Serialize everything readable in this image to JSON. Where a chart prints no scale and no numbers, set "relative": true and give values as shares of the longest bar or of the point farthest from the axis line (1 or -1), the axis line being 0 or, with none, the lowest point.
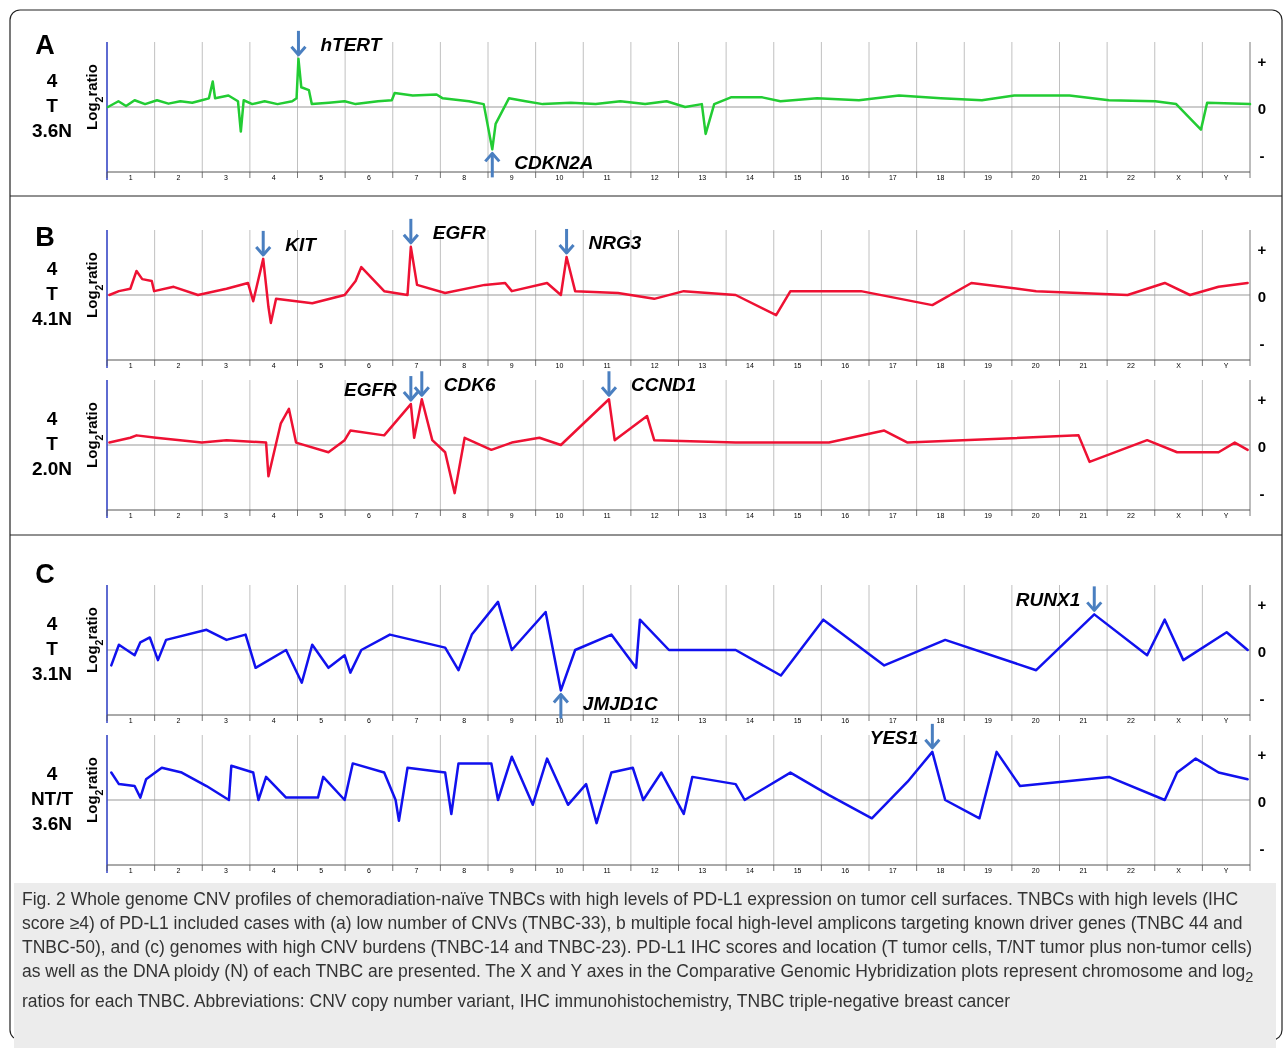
{
  "chart_data": [
    {
      "type": "line",
      "title": "A",
      "ylabel": "Log$_{2}$ratio",
      "color": "#22cc33",
      "grid": "x",
      "relative": true,
      "xlim": [
        0.5,
        24.5
      ],
      "xticks": [
        {
          "value": 0.5,
          "label": null
        },
        1,
        {
          "value": 1.5,
          "label": null
        },
        2,
        {
          "value": 2.5,
          "label": null
        },
        3,
        {
          "value": 3.5,
          "label": null
        },
        4,
        {
          "value": 4.5,
          "label": null
        },
        5,
        {
          "value": 5.5,
          "label": null
        },
        6,
        {
          "value": 6.5,
          "label": null
        },
        7,
        {
          "value": 7.5,
          "label": null
        },
        8,
        {
          "value": 8.5,
          "label": null
        },
        9,
        {
          "value": 9.5,
          "label": null
        },
        10,
        {
          "value": 10.5,
          "label": null
        },
        11,
        {
          "value": 11.5,
          "label": null
        },
        12,
        {
          "value": 12.5,
          "label": null
        },
        13,
        {
          "value": 13.5,
          "label": null
        },
        14,
        {
          "value": 14.5,
          "label": null
        },
        15,
        {
          "value": 15.5,
          "label": null
        },
        16,
        {
          "value": 16.5,
          "label": null
        },
        17,
        {
          "value": 17.5,
          "label": null
        },
        18,
        {
          "value": 18.5,
          "label": null
        },
        19,
        {
          "value": 19.5,
          "label": null
        },
        20,
        {
          "value": 20.5,
          "label": null
        },
        21,
        {
          "value": 21.5,
          "label": null
        },
        22,
        {
          "value": 22.5,
          "label": null
        },
        {
          "value": 23,
          "label": "X"
        },
        {
          "value": 23.5,
          "label": null
        },
        {
          "value": 24,
          "label": "Y"
        },
        {
          "value": 24.5,
          "label": null
        }
      ],
      "ref_lines": [
        {
          "axis": "y",
          "value": 0,
          "color": "#999999"
        }
      ],
      "x": [
        0.52,
        0.74,
        0.9,
        1.08,
        1.3,
        1.55,
        1.79,
        2.04,
        2.29,
        2.49,
        2.64,
        2.72,
        2.77,
        3.05,
        3.25,
        3.31,
        3.37,
        3.55,
        3.81,
        4.08,
        4.39,
        4.48,
        4.52,
        4.58,
        4.74,
        4.8,
        5.16,
        5.49,
        5.72,
        6.19,
        6.48,
        6.54,
        6.92,
        7.42,
        7.55,
        8.1,
        8.41,
        8.59,
        8.66,
        8.94,
        9.29,
        9.65,
        10.24,
        10.76,
        11.28,
        11.8,
        12.25,
        12.64,
        12.99,
        13.07,
        13.25,
        13.6,
        14.26,
        14.64,
        15.41,
        16.29,
        17.13,
        18.01,
        18.87,
        19.55,
        20.71,
        21.54,
        22.51,
        22.95,
        23.47,
        23.6,
        24.5
      ],
      "values": [
        0,
        0.12,
        0.02,
        0.14,
        0.06,
        0.14,
        0.07,
        0.12,
        0.09,
        0.14,
        0.18,
        0.53,
        0.18,
        0.24,
        0.12,
        -0.51,
        0.14,
        0.06,
        0.12,
        0.06,
        0.12,
        0.18,
        1,
        0.41,
        0.35,
        0.06,
        0.09,
        0.12,
        0.06,
        0.12,
        0.14,
        0.29,
        0.24,
        0.26,
        0.18,
        0.12,
        0.06,
        -0.88,
        -0.35,
        0.18,
        0.12,
        0.06,
        0.09,
        0.06,
        0.12,
        0.06,
        0.12,
        0,
        0.06,
        -0.56,
        0.06,
        0.2,
        0.2,
        0.12,
        0.18,
        0.14,
        0.24,
        0.18,
        0.14,
        0.24,
        0.24,
        0.14,
        0.12,
        0.06,
        -0.47,
        0.09,
        0.06
      ],
      "annotations": [
        "4\nT\n3.6N",
        "+",
        "0",
        "-",
        {
          "text": "hTERT",
          "x": 4.52,
          "y": 1
        },
        {
          "text": "CDKN2A",
          "x": 8.59,
          "y": -0.88
        }
      ]
    },
    {
      "type": "line",
      "title": "B",
      "ylabel": "Log$_{2}$ratio",
      "color": "#ee1133",
      "grid": "x",
      "relative": true,
      "xlim": [
        0.5,
        24.5
      ],
      "xticks": [
        {
          "value": 0.5,
          "label": null
        },
        1,
        {
          "value": 1.5,
          "label": null
        },
        2,
        {
          "value": 2.5,
          "label": null
        },
        3,
        {
          "value": 3.5,
          "label": null
        },
        4,
        {
          "value": 4.5,
          "label": null
        },
        5,
        {
          "value": 5.5,
          "label": null
        },
        6,
        {
          "value": 6.5,
          "label": null
        },
        7,
        {
          "value": 7.5,
          "label": null
        },
        8,
        {
          "value": 8.5,
          "label": null
        },
        9,
        {
          "value": 9.5,
          "label": null
        },
        10,
        {
          "value": 10.5,
          "label": null
        },
        11,
        {
          "value": 11.5,
          "label": null
        },
        12,
        {
          "value": 12.5,
          "label": null
        },
        13,
        {
          "value": 13.5,
          "label": null
        },
        14,
        {
          "value": 14.5,
          "label": null
        },
        15,
        {
          "value": 15.5,
          "label": null
        },
        16,
        {
          "value": 16.5,
          "label": null
        },
        17,
        {
          "value": 17.5,
          "label": null
        },
        18,
        {
          "value": 18.5,
          "label": null
        },
        19,
        {
          "value": 19.5,
          "label": null
        },
        20,
        {
          "value": 20.5,
          "label": null
        },
        21,
        {
          "value": 21.5,
          "label": null
        },
        22,
        {
          "value": 22.5,
          "label": null
        },
        {
          "value": 23,
          "label": "X"
        },
        {
          "value": 23.5,
          "label": null
        },
        {
          "value": 24,
          "label": "Y"
        },
        {
          "value": 24.5,
          "label": null
        }
      ],
      "ref_lines": [
        {
          "axis": "y",
          "value": 0,
          "color": "#999999"
        }
      ],
      "x": [
        0.55,
        0.75,
        0.99,
        1.12,
        1.24,
        1.44,
        1.49,
        1.9,
        2.41,
        3.01,
        3.46,
        3.57,
        3.78,
        3.89,
        3.94,
        4.05,
        4.81,
        5.49,
        5.72,
        5.84,
        6.32,
        6.81,
        6.88,
        7.01,
        7.6,
        8.43,
        8.86,
        9.0,
        9.74,
        10.03,
        10.15,
        10.33,
        11.23,
        11.99,
        12.61,
        13.7,
        14.55,
        14.85,
        16.33,
        17.83,
        18.65,
        20.01,
        21.93,
        22.71,
        23.24,
        23.84,
        24.45
      ],
      "values": [
        0,
        0.08,
        0.13,
        0.5,
        0.33,
        0.29,
        0.08,
        0.17,
        0,
        0.13,
        0.25,
        -0.13,
        0.75,
        -0.25,
        -0.58,
        -0.08,
        -0.17,
        0,
        0.29,
        0.58,
        0.08,
        0,
        1,
        0.21,
        0.04,
        0.21,
        0.25,
        0.08,
        0.25,
        0,
        0.79,
        0.08,
        0.04,
        -0.08,
        0.08,
        0,
        -0.42,
        0.08,
        0.08,
        -0.21,
        0.25,
        0.08,
        0,
        0.25,
        0,
        0.17,
        0.25
      ],
      "annotations": [
        "4\nT\n4.1N",
        "+",
        "0",
        "-",
        {
          "text": "KIT",
          "x": 3.78,
          "y": 0.75
        },
        {
          "text": "EGFR",
          "x": 6.88,
          "y": 1
        },
        {
          "text": "NRG3",
          "x": 10.15,
          "y": 0.79
        }
      ]
    },
    {
      "type": "line",
      "ylabel": "Log$_{2}$ratio",
      "color": "#ee1133",
      "grid": "x",
      "relative": true,
      "xlim": [
        0.5,
        24.5
      ],
      "xticks": [
        {
          "value": 0.5,
          "label": null
        },
        1,
        {
          "value": 1.5,
          "label": null
        },
        2,
        {
          "value": 2.5,
          "label": null
        },
        3,
        {
          "value": 3.5,
          "label": null
        },
        4,
        {
          "value": 4.5,
          "label": null
        },
        5,
        {
          "value": 5.5,
          "label": null
        },
        6,
        {
          "value": 6.5,
          "label": null
        },
        7,
        {
          "value": 7.5,
          "label": null
        },
        8,
        {
          "value": 8.5,
          "label": null
        },
        9,
        {
          "value": 9.5,
          "label": null
        },
        10,
        {
          "value": 10.5,
          "label": null
        },
        11,
        {
          "value": 11.5,
          "label": null
        },
        12,
        {
          "value": 12.5,
          "label": null
        },
        13,
        {
          "value": 13.5,
          "label": null
        },
        14,
        {
          "value": 14.5,
          "label": null
        },
        15,
        {
          "value": 15.5,
          "label": null
        },
        16,
        {
          "value": 16.5,
          "label": null
        },
        17,
        {
          "value": 17.5,
          "label": null
        },
        18,
        {
          "value": 18.5,
          "label": null
        },
        19,
        {
          "value": 19.5,
          "label": null
        },
        20,
        {
          "value": 20.5,
          "label": null
        },
        21,
        {
          "value": 21.5,
          "label": null
        },
        22,
        {
          "value": 22.5,
          "label": null
        },
        {
          "value": 23,
          "label": "X"
        },
        {
          "value": 23.5,
          "label": null
        },
        {
          "value": 24,
          "label": "Y"
        },
        {
          "value": 24.5,
          "label": null
        }
      ],
      "ref_lines": [
        {
          "axis": "y",
          "value": 0,
          "color": "#999999"
        }
      ],
      "x": [
        0.55,
        0.99,
        1.12,
        1.53,
        2.49,
        3.01,
        3.84,
        3.89,
        4.15,
        4.32,
        4.47,
        5.15,
        5.49,
        5.61,
        6.32,
        6.88,
        6.95,
        7.11,
        7.33,
        7.6,
        7.8,
        8.01,
        8.57,
        9.0,
        9.58,
        10.03,
        11.04,
        11.16,
        11.84,
        11.99,
        13.7,
        15.66,
        16.82,
        17.31,
        20.9,
        21.13,
        22.34,
        22.97,
        23.84,
        24.18,
        24.45
      ],
      "values": [
        0.05,
        0.15,
        0.2,
        0.15,
        0.05,
        0.1,
        0.05,
        -0.65,
        0.45,
        0.75,
        0.05,
        -0.15,
        0.1,
        0.3,
        0.2,
        0.85,
        0.15,
        0.95,
        0.1,
        -0.15,
        -1,
        0.15,
        -0.1,
        0.05,
        0.15,
        0,
        0.95,
        0.1,
        0.6,
        0.1,
        0.05,
        0.05,
        0.3,
        0.05,
        0.2,
        -0.35,
        0.1,
        -0.15,
        -0.15,
        0.05,
        -0.1
      ],
      "annotations": [
        "4\nT\n2.0N",
        "+",
        "0",
        "-",
        {
          "text": "EGFR",
          "x": 6.88,
          "y": 0.85
        },
        {
          "text": "CDK6",
          "x": 7.11,
          "y": 0.95
        },
        {
          "text": "CCND1",
          "x": 11.04,
          "y": 0.95
        }
      ]
    },
    {
      "type": "line",
      "title": "C",
      "ylabel": "Log$_{2}$ratio",
      "color": "#1111ee",
      "grid": "x",
      "relative": true,
      "xlim": [
        0.5,
        24.5
      ],
      "xticks": [
        {
          "value": 0.5,
          "label": null
        },
        1,
        {
          "value": 1.5,
          "label": null
        },
        2,
        {
          "value": 2.5,
          "label": null
        },
        3,
        {
          "value": 3.5,
          "label": null
        },
        4,
        {
          "value": 4.5,
          "label": null
        },
        5,
        {
          "value": 5.5,
          "label": null
        },
        6,
        {
          "value": 6.5,
          "label": null
        },
        7,
        {
          "value": 7.5,
          "label": null
        },
        8,
        {
          "value": 8.5,
          "label": null
        },
        9,
        {
          "value": 9.5,
          "label": null
        },
        10,
        {
          "value": 10.5,
          "label": null
        },
        11,
        {
          "value": 11.5,
          "label": null
        },
        12,
        {
          "value": 12.5,
          "label": null
        },
        13,
        {
          "value": 13.5,
          "label": null
        },
        14,
        {
          "value": 14.5,
          "label": null
        },
        15,
        {
          "value": 15.5,
          "label": null
        },
        16,
        {
          "value": 16.5,
          "label": null
        },
        17,
        {
          "value": 17.5,
          "label": null
        },
        18,
        {
          "value": 18.5,
          "label": null
        },
        19,
        {
          "value": 19.5,
          "label": null
        },
        20,
        {
          "value": 20.5,
          "label": null
        },
        21,
        {
          "value": 21.5,
          "label": null
        },
        22,
        {
          "value": 22.5,
          "label": null
        },
        {
          "value": 23,
          "label": "X"
        },
        {
          "value": 23.5,
          "label": null
        },
        {
          "value": 24,
          "label": "Y"
        },
        {
          "value": 24.5,
          "label": null
        }
      ],
      "ref_lines": [
        {
          "axis": "y",
          "value": 0,
          "color": "#999999"
        }
      ],
      "x": [
        0.59,
        0.75,
        1.08,
        1.2,
        1.4,
        1.57,
        1.74,
        2.59,
        3.01,
        3.41,
        3.62,
        4.26,
        4.59,
        4.81,
        5.15,
        5.49,
        5.61,
        5.84,
        6.44,
        7.6,
        7.88,
        8.16,
        8.71,
        9.0,
        9.71,
        10.03,
        10.33,
        11.09,
        11.61,
        11.69,
        12.3,
        13.7,
        14.65,
        15.54,
        16.82,
        18.1,
        20.01,
        21.23,
        22.34,
        22.71,
        23.1,
        24.01,
        24.45
      ],
      "values": [
        -0.32,
        0.11,
        -0.11,
        0.16,
        0.26,
        -0.21,
        0.21,
        0.42,
        0.21,
        0.32,
        -0.37,
        0,
        -0.68,
        0.11,
        -0.37,
        -0.11,
        -0.47,
        0,
        0.32,
        0.05,
        -0.42,
        0.32,
        1,
        0,
        0.79,
        -0.84,
        0,
        0.32,
        -0.37,
        0.63,
        0,
        0,
        -0.53,
        0.63,
        -0.32,
        0.21,
        -0.42,
        0.74,
        -0.11,
        0.63,
        -0.21,
        0.37,
        0
      ],
      "annotations": [
        "4\nT\n3.1N",
        "+",
        "0",
        "-",
        {
          "text": "RUNX1",
          "x": 21.23,
          "y": 0.74
        },
        {
          "text": "JMJD1C",
          "x": 10.03,
          "y": -0.84
        }
      ]
    },
    {
      "type": "line",
      "ylabel": "Log$_{2}$ratio",
      "color": "#1111ee",
      "grid": "x",
      "relative": true,
      "xlim": [
        0.5,
        24.5
      ],
      "xticks": [
        {
          "value": 0.5,
          "label": null
        },
        1,
        {
          "value": 1.5,
          "label": null
        },
        2,
        {
          "value": 2.5,
          "label": null
        },
        3,
        {
          "value": 3.5,
          "label": null
        },
        4,
        {
          "value": 4.5,
          "label": null
        },
        5,
        {
          "value": 5.5,
          "label": null
        },
        6,
        {
          "value": 6.5,
          "label": null
        },
        7,
        {
          "value": 7.5,
          "label": null
        },
        8,
        {
          "value": 8.5,
          "label": null
        },
        9,
        {
          "value": 9.5,
          "label": null
        },
        10,
        {
          "value": 10.5,
          "label": null
        },
        11,
        {
          "value": 11.5,
          "label": null
        },
        12,
        {
          "value": 12.5,
          "label": null
        },
        13,
        {
          "value": 13.5,
          "label": null
        },
        14,
        {
          "value": 14.5,
          "label": null
        },
        15,
        {
          "value": 15.5,
          "label": null
        },
        16,
        {
          "value": 16.5,
          "label": null
        },
        17,
        {
          "value": 17.5,
          "label": null
        },
        18,
        {
          "value": 18.5,
          "label": null
        },
        19,
        {
          "value": 19.5,
          "label": null
        },
        20,
        {
          "value": 20.5,
          "label": null
        },
        21,
        {
          "value": 21.5,
          "label": null
        },
        22,
        {
          "value": 22.5,
          "label": null
        },
        {
          "value": 23,
          "label": "X"
        },
        {
          "value": 23.5,
          "label": null
        },
        {
          "value": 24,
          "label": "Y"
        },
        {
          "value": 24.5,
          "label": null
        }
      ],
      "ref_lines": [
        {
          "axis": "y",
          "value": 0,
          "color": "#999999"
        }
      ],
      "x": [
        0.59,
        0.75,
        1.08,
        1.2,
        1.32,
        1.65,
        2.07,
        2.59,
        3.06,
        3.11,
        3.57,
        3.68,
        3.84,
        4.26,
        4.93,
        5.04,
        5.49,
        5.66,
        6.32,
        6.56,
        6.63,
        6.81,
        7.6,
        7.73,
        7.88,
        8.57,
        8.71,
        9.0,
        9.44,
        9.74,
        10.18,
        10.56,
        10.78,
        11.09,
        11.54,
        11.76,
        12.14,
        12.61,
        12.79,
        13.7,
        13.89,
        14.85,
        15.66,
        16.56,
        17.31,
        17.83,
        18.1,
        18.82,
        19.18,
        19.67,
        21.54,
        22.71,
        22.97,
        23.36,
        23.84,
        24.45
      ],
      "values": [
        0.57,
        0.33,
        0.29,
        0.05,
        0.43,
        0.67,
        0.57,
        0.29,
        0,
        0.71,
        0.57,
        0,
        0.48,
        0.05,
        0.05,
        0.48,
        0,
        0.76,
        0.57,
        0,
        -0.43,
        0.67,
        0.57,
        -0.29,
        0.76,
        0.76,
        0,
        0.9,
        -0.1,
        0.86,
        -0.1,
        0.33,
        -0.48,
        0.57,
        0.67,
        0,
        0.57,
        -0.29,
        0.48,
        0.33,
        0,
        0.57,
        0.1,
        -0.38,
        0.38,
        1,
        0,
        -0.38,
        1,
        0.29,
        0.48,
        0,
        0.57,
        0.86,
        0.57,
        0.43
      ],
      "annotations": [
        "4\nNT/T\n3.6N",
        "+",
        "0",
        "-",
        {
          "text": "YES1",
          "x": 17.83,
          "y": 1
        },
        "Fig. 2 Whole genome CNV profiles of chemoradiation-naïve TNBCs with high levels of PD-L1 expression on tumor cell surfaces. TNBCs with high levels (IHC score ≥4) of PD-L1 included cases with (a) low number of CNVs (TNBC-33), b multiple focal high-level amplicons targeting known driver genes (TNBC 44 and TNBC-50), and (c) genomes with high CNV burdens (TNBC-14 and TNBC-23). PD-L1 IHC scores and location (T tumor cells, T/NT tumor plus non-tumor cells) as well as the DNA ploidy (N) of each TNBC are presented. The X and Y axes in the Comparative Genomic Hybridization plots represent chromosome and log$_{2}$ ratios for each TNBC. Abbreviations: CNV copy number variant, IHC immunohistochemistry, TNBC triple-negative breast cancer"
      ]
    }
  ]
}
